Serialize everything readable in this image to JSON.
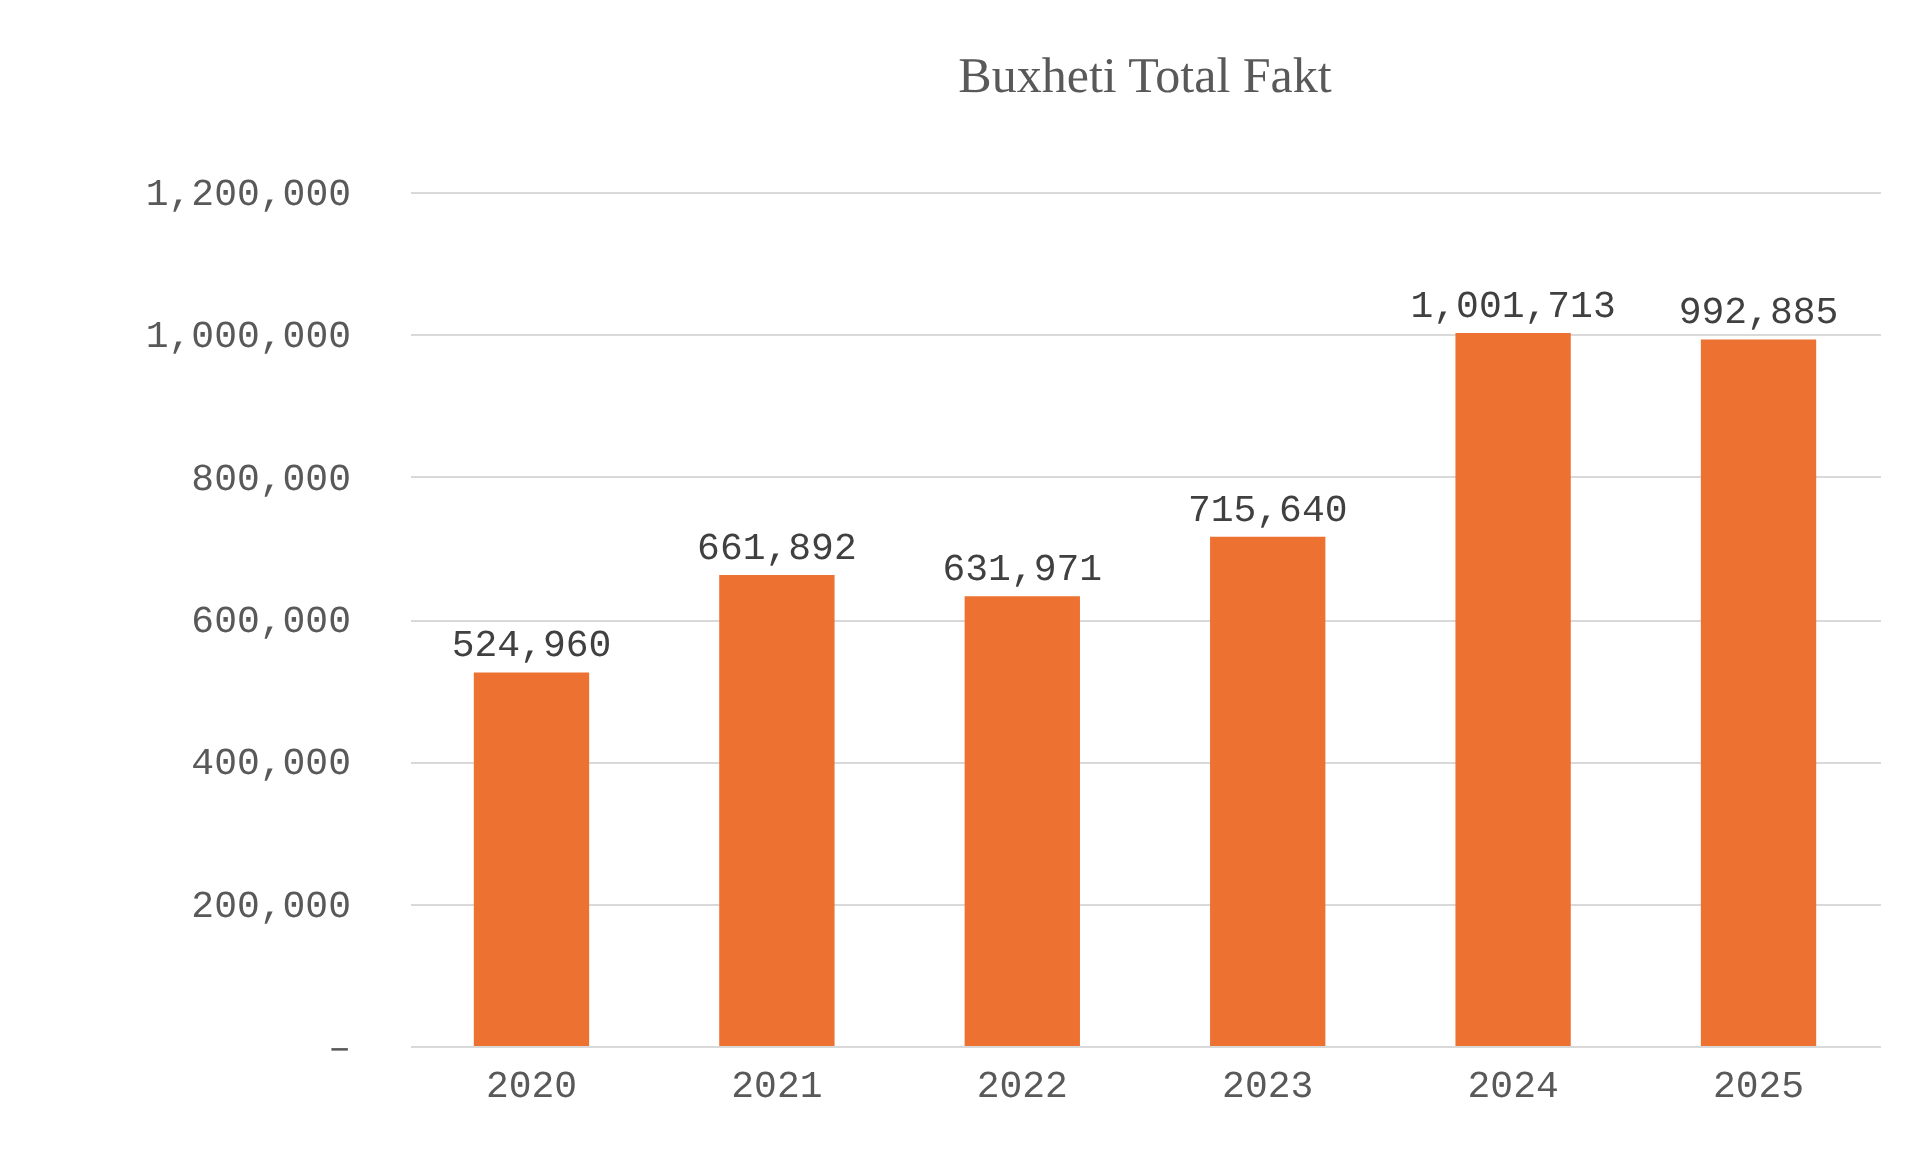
{
  "chart_data": {
    "type": "bar",
    "title": "Buxheti Total Fakt",
    "categories": [
      "2020",
      "2021",
      "2022",
      "2023",
      "2024",
      "2025"
    ],
    "values": [
      524960,
      661892,
      631971,
      715640,
      1001713,
      992885
    ],
    "value_labels": [
      "524,960",
      "661,892",
      "631,971",
      "715,640",
      "1,001,713",
      "992,885"
    ],
    "color": "#ed7232",
    "ylim": [
      0,
      1200000
    ],
    "yticks": [
      {
        "value": 0,
        "label": "–"
      },
      {
        "value": 200000,
        "label": "200,000"
      },
      {
        "value": 400000,
        "label": "400,000"
      },
      {
        "value": 600000,
        "label": "600,000"
      },
      {
        "value": 800000,
        "label": "800,000"
      },
      {
        "value": 1000000,
        "label": "1,000,000"
      },
      {
        "value": 1200000,
        "label": "1,200,000"
      }
    ],
    "grid": "y"
  }
}
